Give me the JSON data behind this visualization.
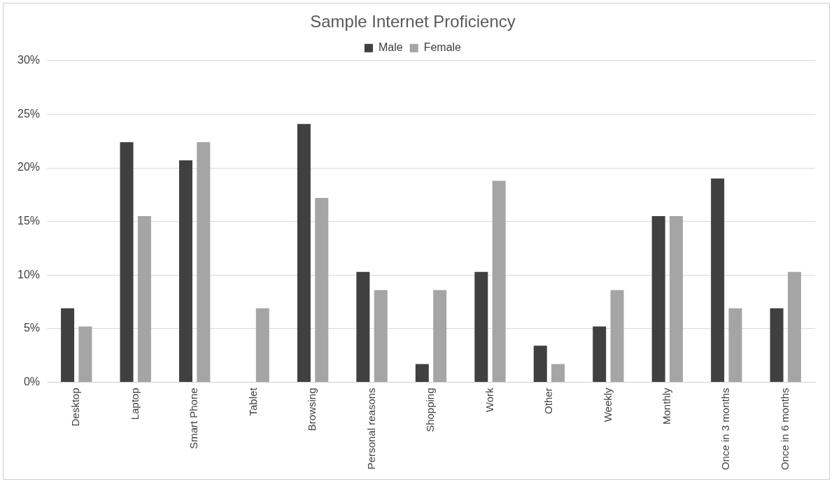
{
  "chart_data": {
    "type": "bar",
    "title": "Sample Internet Proficiency",
    "categories": [
      "Desktop",
      "Laptop",
      "Smart Phone",
      "Tablet",
      "Browsing",
      "Personal reasons",
      "Shopping",
      "Work",
      "Other",
      "Weekly",
      "Monthly",
      "Once in 3 months",
      "Once in 6 months"
    ],
    "series": [
      {
        "name": "Male",
        "color": "#404040",
        "values": [
          6.9,
          22.4,
          20.7,
          0,
          24.1,
          10.3,
          1.7,
          10.3,
          3.4,
          5.2,
          15.5,
          19.0,
          6.9
        ]
      },
      {
        "name": "Female",
        "color": "#a5a5a5",
        "values": [
          5.2,
          15.5,
          22.4,
          6.9,
          17.2,
          8.6,
          8.6,
          18.8,
          1.7,
          8.6,
          15.5,
          6.9,
          10.3
        ]
      }
    ],
    "ylim": [
      0,
      30
    ],
    "yticks": [
      {
        "value": 0,
        "label": "0%"
      },
      {
        "value": 5,
        "label": "5%"
      },
      {
        "value": 10,
        "label": "10%"
      },
      {
        "value": 15,
        "label": "15%"
      },
      {
        "value": 20,
        "label": "20%"
      },
      {
        "value": 25,
        "label": "25%"
      },
      {
        "value": 30,
        "label": "30%"
      }
    ],
    "grid": "y",
    "legend": "top"
  }
}
